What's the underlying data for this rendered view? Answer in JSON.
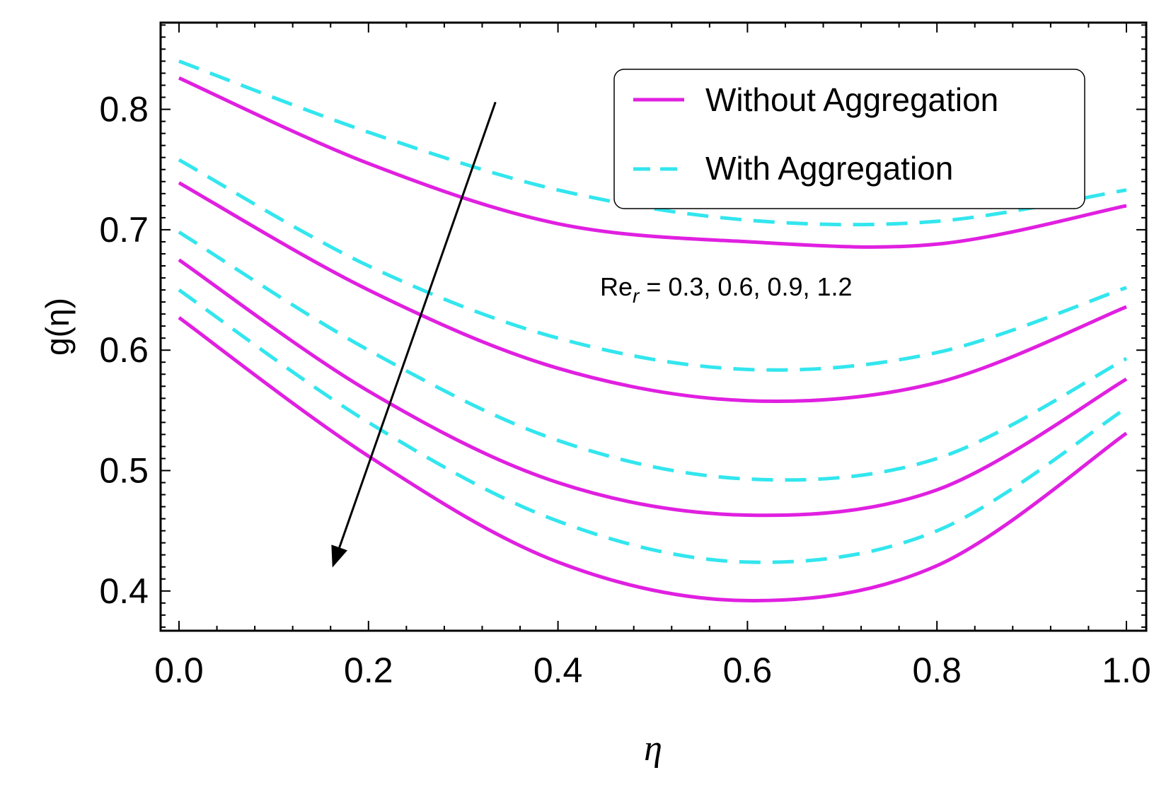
{
  "chart_data": {
    "type": "line",
    "title": "",
    "xlabel": "η",
    "ylabel": "g(η)",
    "xlim": [
      0.0,
      1.0
    ],
    "ylim": [
      0.367,
      0.872
    ],
    "xticks": [
      "0.0",
      "0.2",
      "0.4",
      "0.6",
      "0.8",
      "1.0"
    ],
    "yticks": [
      "0.4",
      "0.5",
      "0.6",
      "0.7",
      "0.8"
    ],
    "x": [
      0.0,
      0.2,
      0.4,
      0.6,
      0.8,
      1.0
    ],
    "series": [
      {
        "name": "Without Aggregation",
        "style": "solid",
        "color": "#e020e0",
        "Re_r": "0.3",
        "values": [
          0.826,
          0.755,
          0.705,
          0.69,
          0.688,
          0.72
        ]
      },
      {
        "name": "With Aggregation",
        "style": "dashed",
        "color": "#33e6ee",
        "Re_r": "0.3",
        "values": [
          0.84,
          0.781,
          0.733,
          0.708,
          0.707,
          0.733
        ]
      },
      {
        "name": "Without Aggregation",
        "style": "solid",
        "color": "#e020e0",
        "Re_r": "0.6",
        "values": [
          0.739,
          0.65,
          0.585,
          0.558,
          0.573,
          0.636
        ]
      },
      {
        "name": "With Aggregation",
        "style": "dashed",
        "color": "#33e6ee",
        "Re_r": "0.6",
        "values": [
          0.758,
          0.67,
          0.61,
          0.584,
          0.598,
          0.652
        ]
      },
      {
        "name": "Without Aggregation",
        "style": "solid",
        "color": "#e020e0",
        "Re_r": "0.9",
        "values": [
          0.675,
          0.566,
          0.49,
          0.463,
          0.484,
          0.576
        ]
      },
      {
        "name": "With Aggregation",
        "style": "dashed",
        "color": "#33e6ee",
        "Re_r": "0.9",
        "values": [
          0.698,
          0.6,
          0.525,
          0.493,
          0.51,
          0.593
        ]
      },
      {
        "name": "Without Aggregation",
        "style": "solid",
        "color": "#e020e0",
        "Re_r": "1.2",
        "values": [
          0.627,
          0.512,
          0.424,
          0.392,
          0.421,
          0.531
        ]
      },
      {
        "name": "With Aggregation",
        "style": "dashed",
        "color": "#33e6ee",
        "Re_r": "1.2",
        "values": [
          0.65,
          0.54,
          0.458,
          0.424,
          0.45,
          0.552
        ]
      }
    ],
    "legend": {
      "position": "top-right",
      "entries": [
        {
          "label": "Without Aggregation",
          "style": "solid",
          "color": "#e020e0"
        },
        {
          "label": "With Aggregation",
          "style": "dashed",
          "color": "#33e6ee"
        }
      ]
    },
    "annotation": {
      "text_main": "Re",
      "text_sub": "r",
      "text_rest": " = 0.3, 0.6, 0.9, 1.2"
    },
    "arrow": {
      "from": [
        0.334,
        0.806
      ],
      "to": [
        0.163,
        0.422
      ],
      "direction": "increasing Re_r"
    }
  }
}
